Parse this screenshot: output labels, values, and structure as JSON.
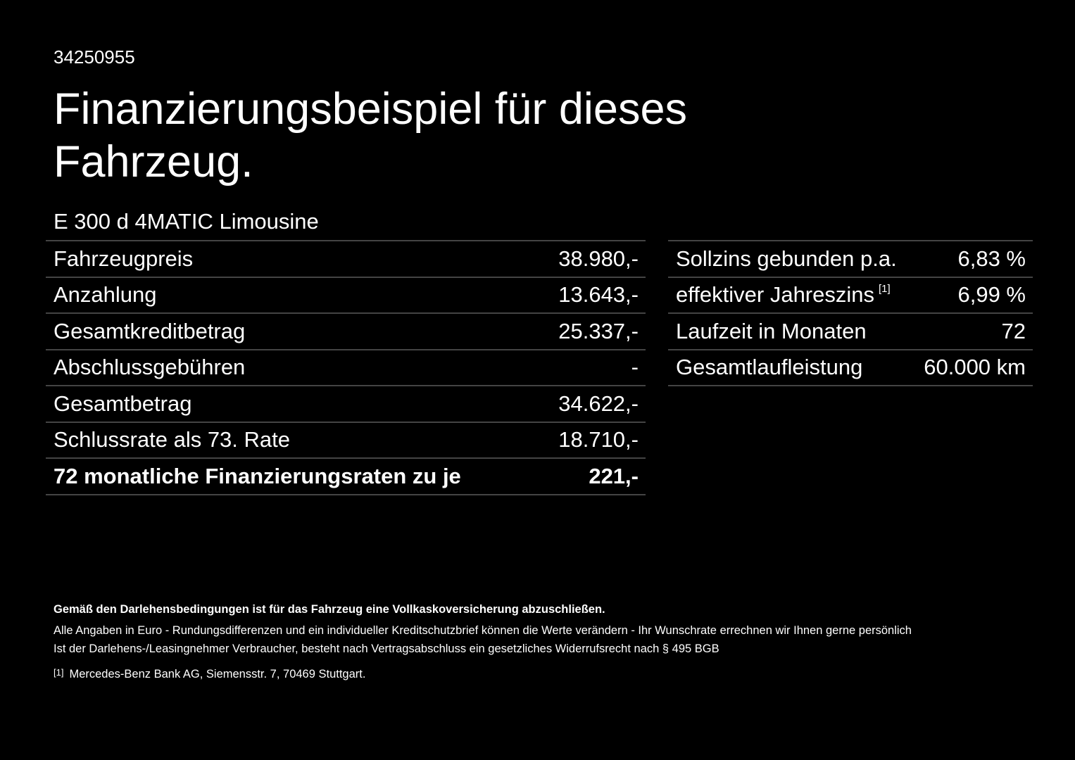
{
  "reference_number": "34250955",
  "title": "Finanzierungsbeispiel für dieses Fahrzeug.",
  "model": "E 300 d 4MATIC Limousine",
  "left_table": [
    {
      "label": "Fahrzeugpreis",
      "value": "38.980,-"
    },
    {
      "label": "Anzahlung",
      "value": "13.643,-"
    },
    {
      "label": "Gesamtkreditbetrag",
      "value": "25.337,-"
    },
    {
      "label": "Abschlussgebühren",
      "value": "-"
    },
    {
      "label": "Gesamtbetrag",
      "value": "34.622,-"
    },
    {
      "label": "Schlussrate als 73. Rate",
      "value": "18.710,-"
    },
    {
      "label": "72 monatliche Finanzierungsraten zu je",
      "value": "221,-"
    }
  ],
  "right_table": [
    {
      "label": "Sollzins gebunden p.a.",
      "value": "6,83 %"
    },
    {
      "label": "effektiver Jahreszins",
      "footnote": "[1]",
      "value": "6,99 %"
    },
    {
      "label": "Laufzeit in Monaten",
      "value": "72"
    },
    {
      "label": "Gesamtlaufleistung",
      "value": "60.000 km"
    }
  ],
  "footer": {
    "bold_note": "Gemäß den Darlehensbedingungen ist für das Fahrzeug eine Vollkaskoversicherung abzuschließen.",
    "line1": "Alle Angaben in Euro - Rundungsdifferenzen und ein individueller Kreditschutzbrief können die Werte verändern - Ihr Wunschrate errechnen wir Ihnen gerne persönlich",
    "line2": "Ist der Darlehens-/Leasingnehmer Verbraucher, besteht nach Vertragsabschluss ein gesetzliches Widerrufsrecht nach § 495 BGB",
    "footnote_marker": "[1]",
    "footnote_text": "Mercedes-Benz Bank AG, Siemensstr. 7, 70469 Stuttgart."
  }
}
